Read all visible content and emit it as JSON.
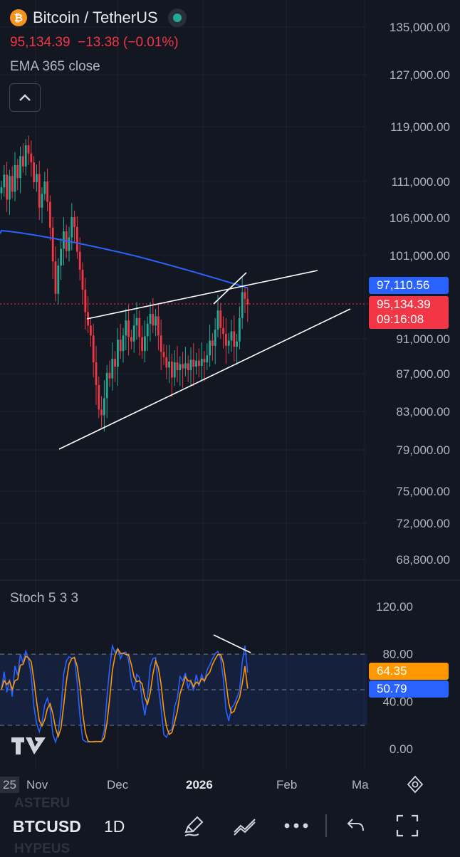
{
  "header": {
    "logo_glyph": "₿",
    "title": "Bitcoin / TetherUS",
    "last_price": "95,134.39",
    "change": "−13.38 (−0.01%)",
    "indicator_label": "EMA 365 close"
  },
  "price_axis": {
    "labels": [
      "135,000.00",
      "127,000.00",
      "119,000.00",
      "111,000.00",
      "106,000.00",
      "101,000.00",
      "91,000.00",
      "87,000.00",
      "83,000.00",
      "79,000.00",
      "75,000.00",
      "72,000.00",
      "68,800.00"
    ],
    "ema_tag": "97,110.56",
    "price_tag": "95,134.39",
    "countdown_tag": "09:16:08",
    "ema_color": "#2962ff",
    "price_color": "#f23645"
  },
  "stoch_panel": {
    "label": "Stoch 5 3 3",
    "axis_labels": [
      "120.00",
      "80.00",
      "40.00",
      "0.00"
    ],
    "k_tag": "64.35",
    "d_tag": "50.79",
    "k_color": "#ff9800",
    "d_color": "#2962ff"
  },
  "time_axis": {
    "labels": [
      "25",
      "Nov",
      "Dec",
      "2026",
      "Feb",
      "Ma"
    ],
    "settings_icon": "gear-icon"
  },
  "toolbar": {
    "symbol": "BTCUSD",
    "interval": "1D",
    "ghost_top": "ASTERU",
    "ghost_bottom": "HYPEUS",
    "icons": [
      "pen-icon",
      "trendline-icon",
      "more-icon",
      "undo-icon",
      "fullscreen-icon"
    ]
  },
  "chart_data": {
    "type": "candlestick",
    "ema_period": 365,
    "price_range": [
      68800,
      135000
    ],
    "candles_close": [
      110200,
      112000,
      108500,
      111800,
      109600,
      113400,
      111500,
      114700,
      113200,
      116300,
      115100,
      113800,
      110900,
      112100,
      107400,
      109300,
      111000,
      108200,
      104700,
      100300,
      96400,
      99800,
      101900,
      104200,
      101600,
      103400,
      106100,
      104800,
      101500,
      99300,
      96900,
      94200,
      92600,
      91400,
      88300,
      85800,
      83200,
      82600,
      84400,
      87100,
      86500,
      88700,
      87800,
      90900,
      89600,
      91400,
      93200,
      91200,
      90700,
      92600,
      93500,
      91200,
      89600,
      91300,
      92800,
      94000,
      92600,
      93700,
      91400,
      89500,
      88900,
      87700,
      88400,
      86600,
      88300,
      87400,
      88100,
      87600,
      88200,
      87400,
      88600,
      87800,
      88500,
      87900,
      88700,
      88300,
      89100,
      90800,
      90200,
      92100,
      94400,
      92300,
      91600,
      90200,
      90800,
      91900,
      90100,
      90700,
      93500,
      96600,
      95800,
      95134
    ],
    "stoch_k_last": 64.35,
    "stoch_d_last": 50.79,
    "stoch_levels": [
      20,
      50,
      80
    ],
    "stoch_range": [
      0,
      120
    ]
  }
}
